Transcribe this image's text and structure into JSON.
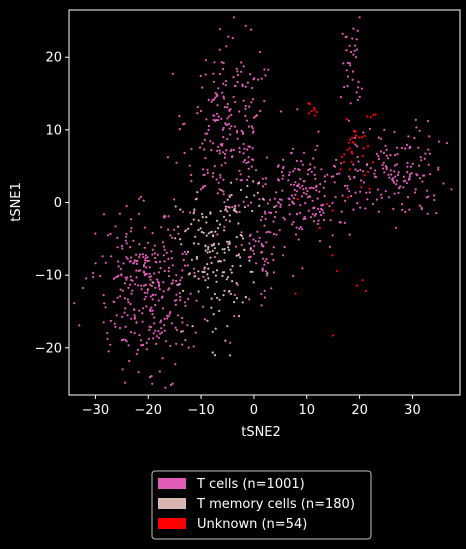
{
  "chart_data": {
    "type": "scatter",
    "title": "",
    "xlabel": "tSNE2",
    "ylabel": "tSNE1",
    "xlim": [
      -35,
      39
    ],
    "ylim": [
      -26.5,
      26.5
    ],
    "xticks": [
      -30,
      -20,
      -10,
      0,
      10,
      20,
      30
    ],
    "yticks": [
      -20,
      -10,
      0,
      10,
      20
    ],
    "grid": false,
    "legend_position": "bottom-center-outside",
    "background": "#000000",
    "series": [
      {
        "name": "T cells (n=1001)",
        "color": "#E05CB8",
        "count": 1001,
        "clusters": [
          {
            "cx": -20,
            "cy": -12,
            "sx": 4.8,
            "sy": 5.2,
            "n": 330,
            "rot": 0.45
          },
          {
            "cx": -5,
            "cy": 10,
            "sx": 4.0,
            "sy": 6.0,
            "n": 220,
            "rot": -0.15
          },
          {
            "cx": 9,
            "cy": 1,
            "sx": 7.0,
            "sy": 3.5,
            "n": 230,
            "rot": 0.15
          },
          {
            "cx": 28,
            "cy": 4,
            "sx": 4.0,
            "sy": 3.3,
            "n": 130,
            "rot": 0.1
          },
          {
            "cx": 18.5,
            "cy": 19,
            "sx": 0.9,
            "sy": 3.5,
            "n": 36,
            "rot": 0
          },
          {
            "cx": 1,
            "cy": -7,
            "sx": 3.0,
            "sy": 3.0,
            "n": 55,
            "rot": 0
          }
        ]
      },
      {
        "name": "T memory cells (n=180)",
        "color": "#D9B6B0",
        "count": 180,
        "clusters": [
          {
            "cx": -7,
            "cy": -8,
            "sx": 3.3,
            "sy": 4.2,
            "n": 150,
            "rot": 0.3
          },
          {
            "cx": -3,
            "cy": 0,
            "sx": 2.5,
            "sy": 2.0,
            "n": 30,
            "rot": 0
          }
        ]
      },
      {
        "name": "Unknown (n=54)",
        "color": "#FF0000",
        "count": 54,
        "clusters": [
          {
            "cx": 19,
            "cy": 7,
            "sx": 1.3,
            "sy": 2.0,
            "n": 28,
            "rot": 0
          },
          {
            "cx": 11,
            "cy": 12.7,
            "sx": 1.0,
            "sy": 0.6,
            "n": 8,
            "rot": -0.4
          },
          {
            "cx": 22,
            "cy": 12,
            "sx": 0.6,
            "sy": 0.8,
            "n": 4,
            "rot": 0
          },
          {
            "cx": 20,
            "cy": -12,
            "sx": 0.5,
            "sy": 0.5,
            "n": 3,
            "rot": 0
          },
          {
            "cx": 15,
            "cy": -4,
            "sx": 6,
            "sy": 6,
            "n": 11,
            "rot": 0
          }
        ]
      }
    ]
  }
}
